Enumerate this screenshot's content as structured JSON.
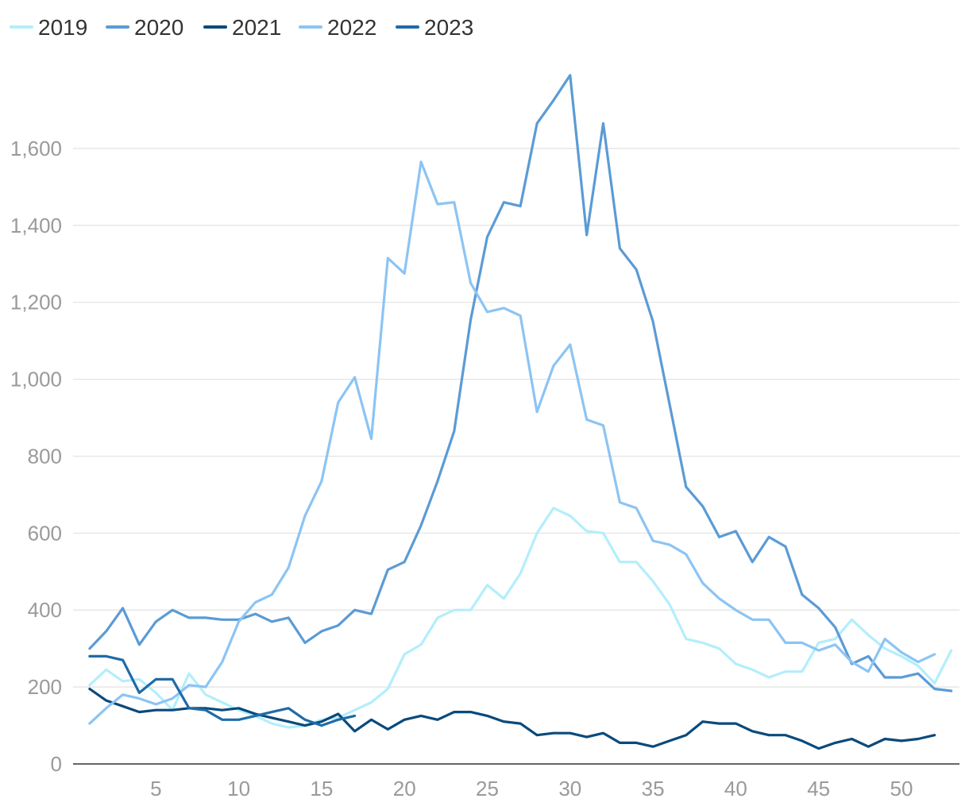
{
  "chart_data": {
    "type": "line",
    "title": "",
    "xlabel": "",
    "ylabel": "",
    "xlim": [
      0,
      53.5
    ],
    "ylim": [
      0,
      1800
    ],
    "x_ticks": [
      5,
      10,
      15,
      20,
      25,
      30,
      35,
      40,
      45,
      50
    ],
    "y_ticks": [
      0,
      200,
      400,
      600,
      800,
      1000,
      1200,
      1400,
      1600
    ],
    "y_tick_labels": [
      "0",
      "200",
      "400",
      "600",
      "800",
      "1,000",
      "1,200",
      "1,400",
      "1,600"
    ],
    "grid": "horizontal",
    "legend": "top-left",
    "series": [
      {
        "name": "2019",
        "color": "#b3eefc",
        "values": [
          205,
          245,
          215,
          220,
          185,
          140,
          235,
          180,
          160,
          140,
          125,
          105,
          95,
          100,
          115,
          120,
          140,
          160,
          195,
          285,
          310,
          380,
          400,
          400,
          465,
          430,
          495,
          600,
          665,
          645,
          605,
          600,
          525,
          525,
          475,
          415,
          325,
          315,
          300,
          260,
          245,
          225,
          240,
          240,
          315,
          325,
          375,
          335,
          300,
          280,
          255,
          210,
          295
        ]
      },
      {
        "name": "2020",
        "color": "#5b9bd5",
        "values": [
          300,
          345,
          405,
          310,
          370,
          400,
          380,
          380,
          375,
          375,
          390,
          370,
          380,
          315,
          345,
          360,
          400,
          390,
          505,
          525,
          620,
          735,
          865,
          1155,
          1370,
          1460,
          1450,
          1665,
          1725,
          1790,
          1375,
          1665,
          1340,
          1285,
          1150,
          935,
          720,
          670,
          590,
          605,
          525,
          590,
          565,
          440,
          405,
          355,
          260,
          280,
          225,
          225,
          235,
          195,
          190
        ]
      },
      {
        "name": "2021",
        "color": "#0a4a7c",
        "values": [
          195,
          165,
          150,
          135,
          140,
          140,
          145,
          145,
          140,
          145,
          130,
          120,
          110,
          100,
          110,
          130,
          85,
          115,
          90,
          115,
          125,
          115,
          135,
          135,
          125,
          110,
          105,
          75,
          80,
          80,
          70,
          80,
          55,
          55,
          45,
          60,
          75,
          110,
          105,
          105,
          85,
          75,
          75,
          60,
          40,
          55,
          65,
          45,
          65,
          60,
          65,
          75
        ]
      },
      {
        "name": "2022",
        "color": "#8cc4f4",
        "values": [
          105,
          145,
          180,
          170,
          155,
          170,
          205,
          200,
          265,
          370,
          420,
          440,
          510,
          645,
          735,
          940,
          1005,
          845,
          1315,
          1275,
          1565,
          1455,
          1460,
          1250,
          1175,
          1185,
          1165,
          915,
          1035,
          1090,
          895,
          880,
          680,
          665,
          580,
          570,
          545,
          470,
          430,
          400,
          375,
          375,
          315,
          315,
          295,
          310,
          265,
          240,
          325,
          290,
          265,
          285
        ]
      },
      {
        "name": "2023",
        "color": "#1f6ba8",
        "values": [
          280,
          280,
          270,
          185,
          220,
          220,
          145,
          140,
          115,
          115,
          125,
          135,
          145,
          115,
          100,
          115,
          125
        ]
      }
    ]
  }
}
